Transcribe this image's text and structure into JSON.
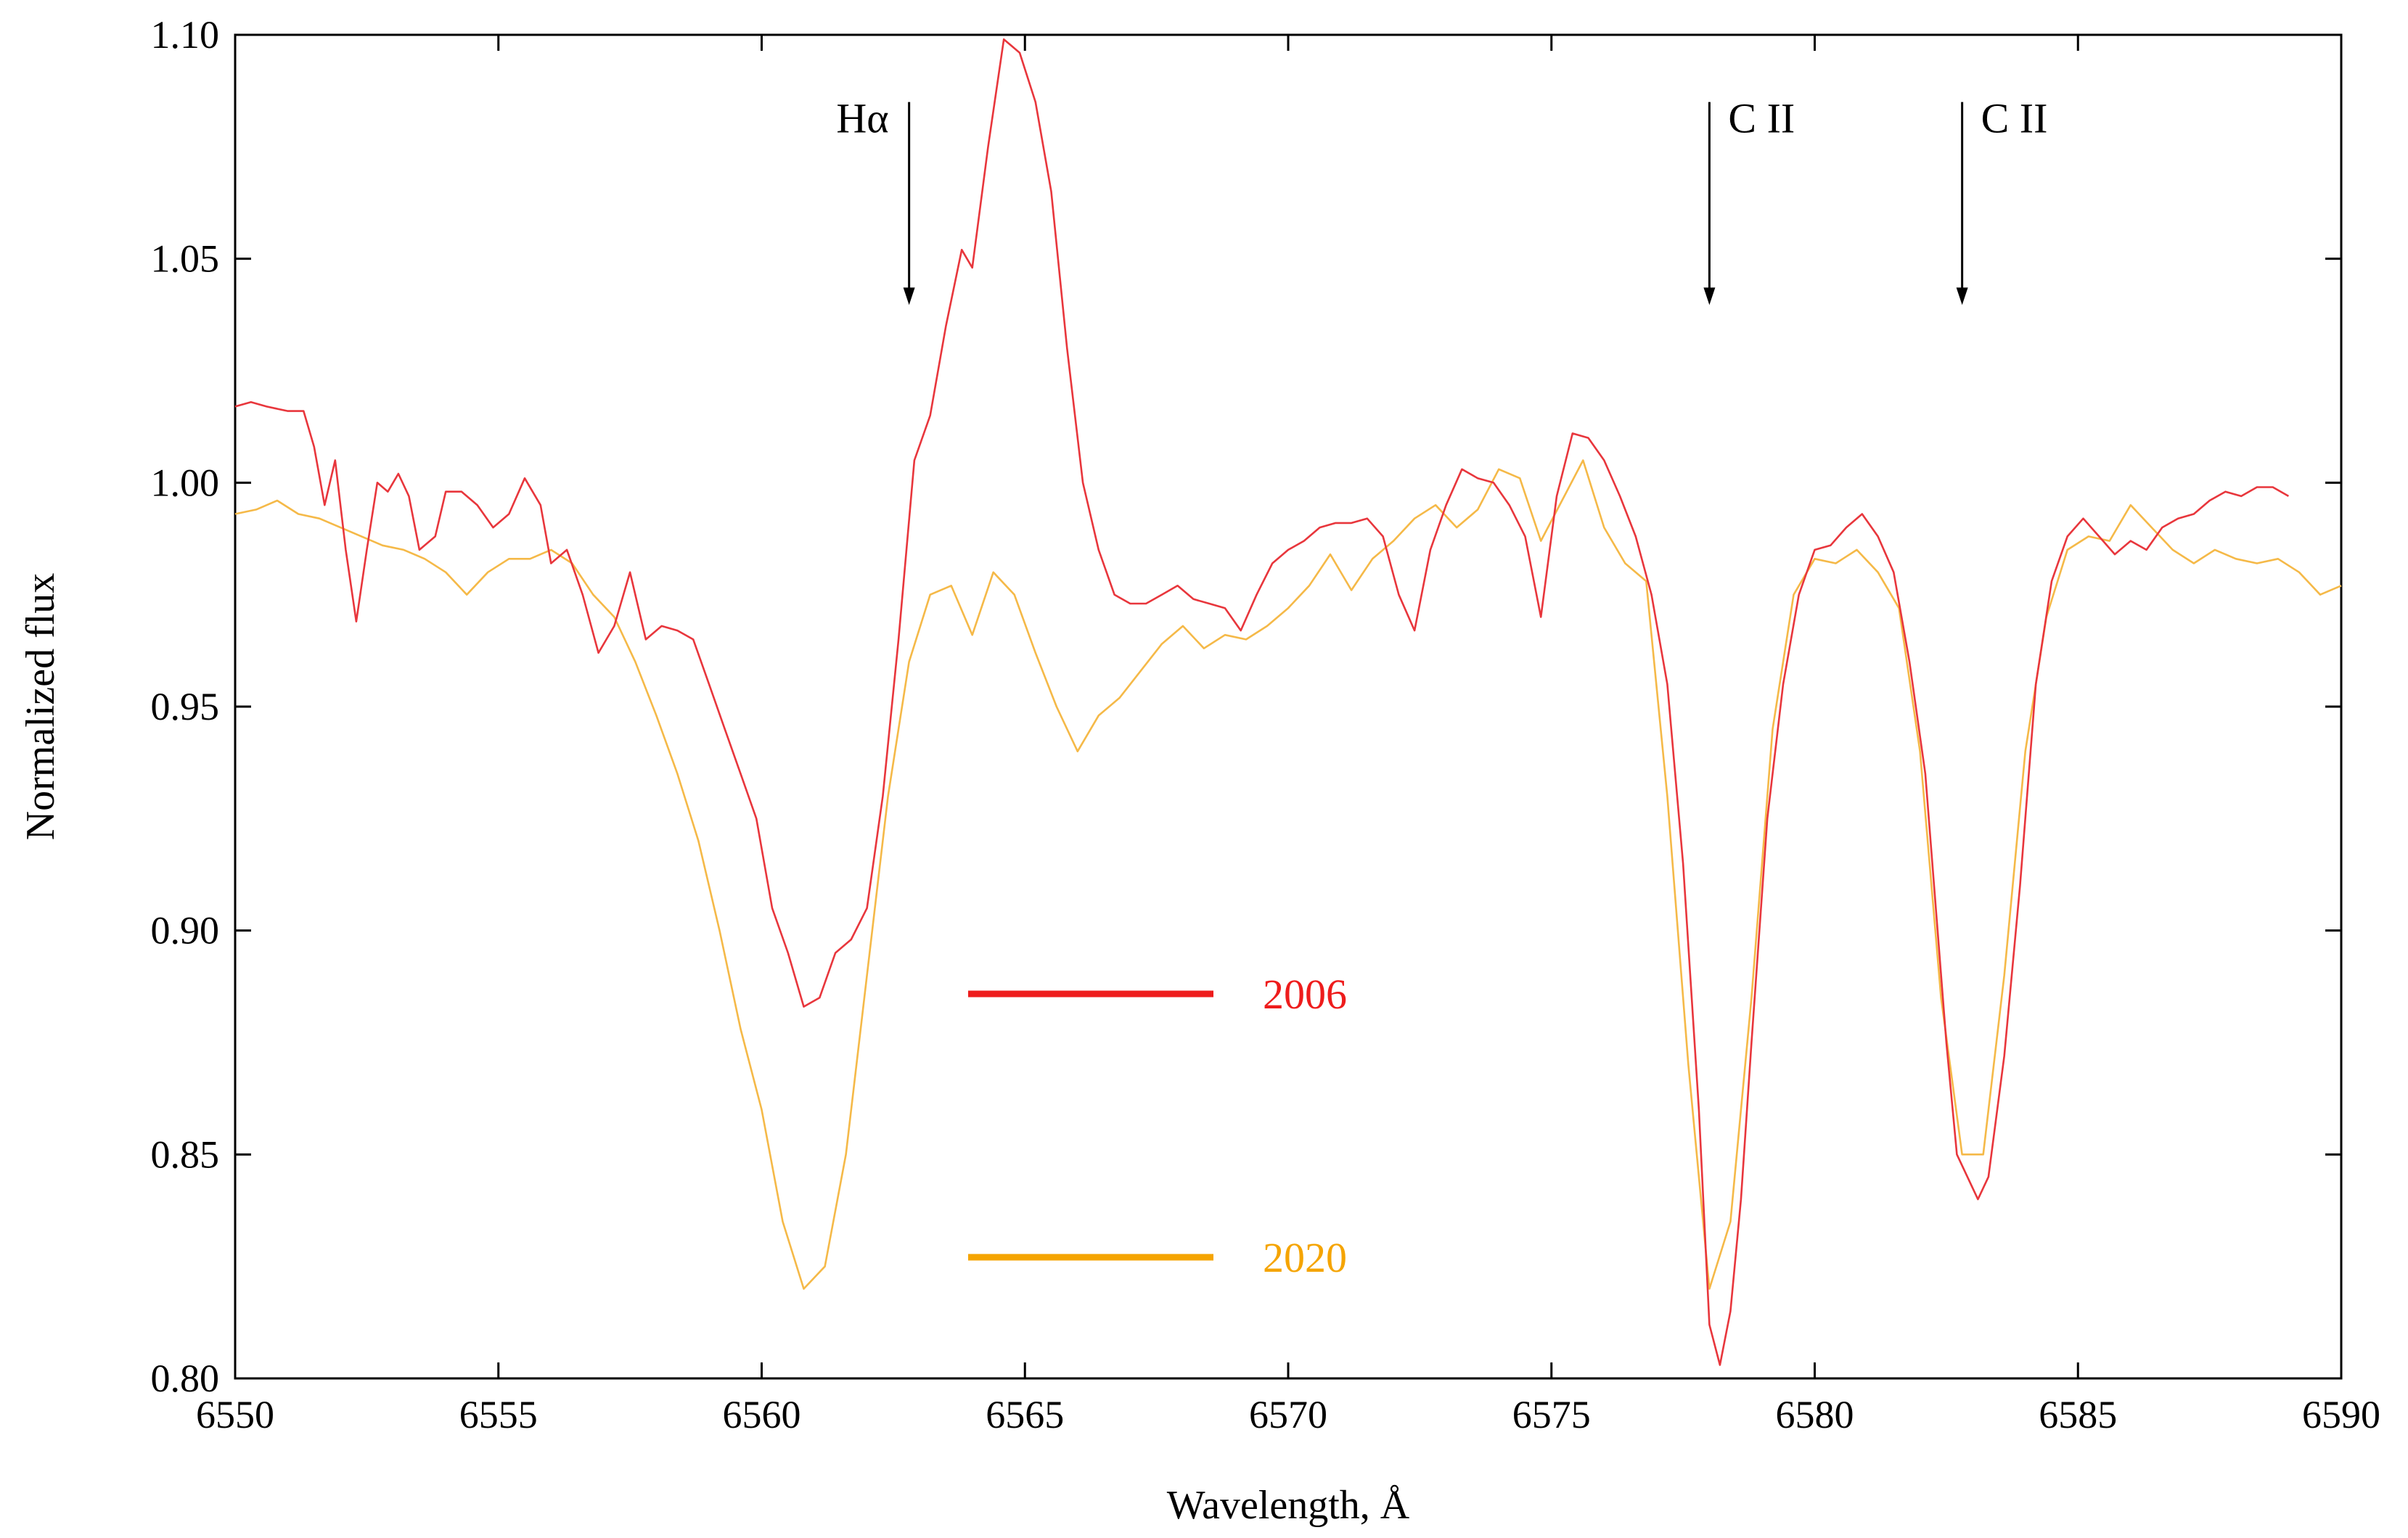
{
  "chart_data": {
    "type": "line",
    "title": "",
    "xlabel": "Wavelength, Å",
    "ylabel": "Normalized flux",
    "xlim": [
      6550,
      6590
    ],
    "ylim": [
      0.8,
      1.1
    ],
    "x_ticks": [
      "6550",
      "6555",
      "6560",
      "6565",
      "6570",
      "6575",
      "6580",
      "6585",
      "6590"
    ],
    "y_ticks": [
      "0.80",
      "0.85",
      "0.90",
      "0.95",
      "1.00",
      "1.05",
      "1.10"
    ],
    "x_tick_values": [
      6550,
      6555,
      6560,
      6565,
      6570,
      6575,
      6580,
      6585,
      6590
    ],
    "y_tick_values": [
      0.8,
      0.85,
      0.9,
      0.95,
      1.0,
      1.05,
      1.1
    ],
    "grid": false,
    "legend_position": "center",
    "annotations": [
      {
        "label": "Hα",
        "x": 6562.8,
        "label_side": "left",
        "y_top": 1.085,
        "y_tip": 1.04
      },
      {
        "label": "C II",
        "x": 6578.0,
        "label_side": "right",
        "y_top": 1.085,
        "y_tip": 1.04
      },
      {
        "label": "C II",
        "x": 6582.8,
        "label_side": "right",
        "y_top": 1.085,
        "y_tip": 1.04
      }
    ],
    "series": [
      {
        "name": "2006",
        "color": "#e8363c",
        "legend_color": "#ee1c1c",
        "x": [
          6550.0,
          6550.3,
          6550.6,
          6551.0,
          6551.3,
          6551.5,
          6551.7,
          6551.9,
          6552.1,
          6552.3,
          6552.5,
          6552.7,
          6552.9,
          6553.1,
          6553.3,
          6553.5,
          6553.8,
          6554.0,
          6554.3,
          6554.6,
          6554.9,
          6555.2,
          6555.5,
          6555.8,
          6556.0,
          6556.3,
          6556.6,
          6556.9,
          6557.2,
          6557.5,
          6557.8,
          6558.1,
          6558.4,
          6558.7,
          6559.0,
          6559.3,
          6559.6,
          6559.9,
          6560.2,
          6560.5,
          6560.8,
          6561.1,
          6561.4,
          6561.7,
          6562.0,
          6562.3,
          6562.6,
          6562.9,
          6563.2,
          6563.5,
          6563.8,
          6564.0,
          6564.3,
          6564.6,
          6564.9,
          6565.2,
          6565.5,
          6565.8,
          6566.1,
          6566.4,
          6566.7,
          6567.0,
          6567.3,
          6567.6,
          6567.9,
          6568.2,
          6568.5,
          6568.8,
          6569.1,
          6569.4,
          6569.7,
          6570.0,
          6570.3,
          6570.6,
          6570.9,
          6571.2,
          6571.5,
          6571.8,
          6572.1,
          6572.4,
          6572.7,
          6573.0,
          6573.3,
          6573.6,
          6573.9,
          6574.2,
          6574.5,
          6574.8,
          6575.1,
          6575.4,
          6575.7,
          6576.0,
          6576.3,
          6576.6,
          6576.9,
          6577.2,
          6577.5,
          6577.8,
          6578.0,
          6578.2,
          6578.4,
          6578.6,
          6578.8,
          6579.1,
          6579.4,
          6579.7,
          6580.0,
          6580.3,
          6580.6,
          6580.9,
          6581.2,
          6581.5,
          6581.8,
          6582.1,
          6582.3,
          6582.5,
          6582.7,
          6582.9,
          6583.1,
          6583.3,
          6583.6,
          6583.9,
          6584.2,
          6584.5,
          6584.8,
          6585.1,
          6585.4,
          6585.7,
          6586.0,
          6586.3,
          6586.6,
          6586.9,
          6587.2,
          6587.5,
          6587.8,
          6588.1,
          6588.4,
          6588.7,
          6589.0
        ],
        "y": [
          1.017,
          1.018,
          1.017,
          1.016,
          1.016,
          1.008,
          0.995,
          1.005,
          0.985,
          0.969,
          0.985,
          1.0,
          0.998,
          1.002,
          0.997,
          0.985,
          0.988,
          0.998,
          0.998,
          0.995,
          0.99,
          0.993,
          1.001,
          0.995,
          0.982,
          0.985,
          0.975,
          0.962,
          0.968,
          0.98,
          0.965,
          0.968,
          0.967,
          0.965,
          0.955,
          0.945,
          0.935,
          0.925,
          0.905,
          0.895,
          0.883,
          0.885,
          0.895,
          0.898,
          0.905,
          0.93,
          0.965,
          1.005,
          1.015,
          1.035,
          1.052,
          1.048,
          1.075,
          1.099,
          1.096,
          1.085,
          1.065,
          1.03,
          1.0,
          0.985,
          0.975,
          0.973,
          0.973,
          0.975,
          0.977,
          0.974,
          0.973,
          0.972,
          0.967,
          0.975,
          0.982,
          0.985,
          0.987,
          0.99,
          0.991,
          0.991,
          0.992,
          0.988,
          0.975,
          0.967,
          0.985,
          0.995,
          1.003,
          1.001,
          1.0,
          0.995,
          0.988,
          0.97,
          0.997,
          1.011,
          1.01,
          1.005,
          0.997,
          0.988,
          0.975,
          0.955,
          0.915,
          0.86,
          0.812,
          0.803,
          0.815,
          0.84,
          0.875,
          0.925,
          0.955,
          0.975,
          0.985,
          0.986,
          0.99,
          0.993,
          0.988,
          0.98,
          0.96,
          0.935,
          0.905,
          0.875,
          0.85,
          0.845,
          0.84,
          0.845,
          0.872,
          0.91,
          0.955,
          0.978,
          0.988,
          0.992,
          0.988,
          0.984,
          0.987,
          0.985,
          0.99,
          0.992,
          0.993,
          0.996,
          0.998,
          0.997,
          0.999,
          0.999,
          0.997
        ]
      },
      {
        "name": "2020",
        "color": "#f5b948",
        "legend_color": "#f5a400",
        "x": [
          6550.0,
          6550.4,
          6550.8,
          6551.2,
          6551.6,
          6552.0,
          6552.4,
          6552.8,
          6553.2,
          6553.6,
          6554.0,
          6554.4,
          6554.8,
          6555.2,
          6555.6,
          6556.0,
          6556.4,
          6556.8,
          6557.2,
          6557.6,
          6558.0,
          6558.4,
          6558.8,
          6559.2,
          6559.6,
          6560.0,
          6560.4,
          6560.8,
          6561.2,
          6561.6,
          6562.0,
          6562.4,
          6562.8,
          6563.2,
          6563.6,
          6564.0,
          6564.4,
          6564.8,
          6565.2,
          6565.6,
          6566.0,
          6566.4,
          6566.8,
          6567.2,
          6567.6,
          6568.0,
          6568.4,
          6568.8,
          6569.2,
          6569.6,
          6570.0,
          6570.4,
          6570.8,
          6571.2,
          6571.6,
          6572.0,
          6572.4,
          6572.8,
          6573.2,
          6573.6,
          6574.0,
          6574.4,
          6574.8,
          6575.2,
          6575.6,
          6576.0,
          6576.4,
          6576.8,
          6577.2,
          6577.6,
          6578.0,
          6578.4,
          6578.8,
          6579.2,
          6579.6,
          6580.0,
          6580.4,
          6580.8,
          6581.2,
          6581.6,
          6582.0,
          6582.4,
          6582.8,
          6583.2,
          6583.6,
          6584.0,
          6584.4,
          6584.8,
          6585.2,
          6585.6,
          6586.0,
          6586.4,
          6586.8,
          6587.2,
          6587.6,
          6588.0,
          6588.4,
          6588.8,
          6589.2,
          6589.6,
          6590.0
        ],
        "y": [
          0.993,
          0.994,
          0.996,
          0.993,
          0.992,
          0.99,
          0.988,
          0.986,
          0.985,
          0.983,
          0.98,
          0.975,
          0.98,
          0.983,
          0.983,
          0.985,
          0.982,
          0.975,
          0.97,
          0.96,
          0.948,
          0.935,
          0.92,
          0.9,
          0.878,
          0.86,
          0.835,
          0.82,
          0.825,
          0.85,
          0.89,
          0.93,
          0.96,
          0.975,
          0.977,
          0.966,
          0.98,
          0.975,
          0.962,
          0.95,
          0.94,
          0.948,
          0.952,
          0.958,
          0.964,
          0.968,
          0.963,
          0.966,
          0.965,
          0.968,
          0.972,
          0.977,
          0.984,
          0.976,
          0.983,
          0.987,
          0.992,
          0.995,
          0.99,
          0.994,
          1.003,
          1.001,
          0.987,
          0.996,
          1.005,
          0.99,
          0.982,
          0.978,
          0.93,
          0.87,
          0.82,
          0.835,
          0.885,
          0.945,
          0.975,
          0.983,
          0.982,
          0.985,
          0.98,
          0.972,
          0.94,
          0.885,
          0.85,
          0.85,
          0.89,
          0.94,
          0.97,
          0.985,
          0.988,
          0.987,
          0.995,
          0.99,
          0.985,
          0.982,
          0.985,
          0.983,
          0.982,
          0.983,
          0.98,
          0.975,
          0.977
        ]
      }
    ]
  }
}
